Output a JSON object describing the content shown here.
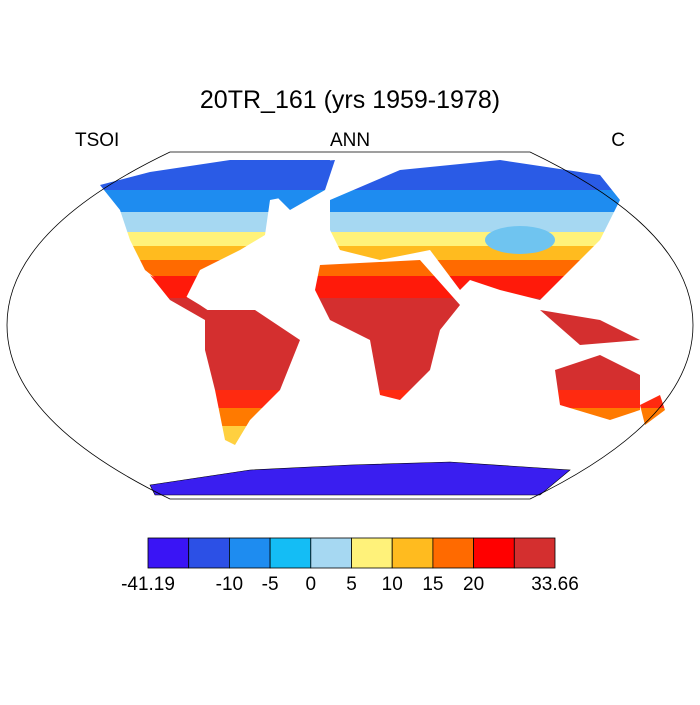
{
  "title": "20TR_161 (yrs 1959-1978)",
  "left_label": "TSOI",
  "center_label": "ANN",
  "right_label": "C",
  "colorbar": {
    "labels": [
      -41.19,
      null,
      -10,
      -5,
      0,
      5,
      10,
      15,
      20,
      null,
      33.66
    ]
  }
}
